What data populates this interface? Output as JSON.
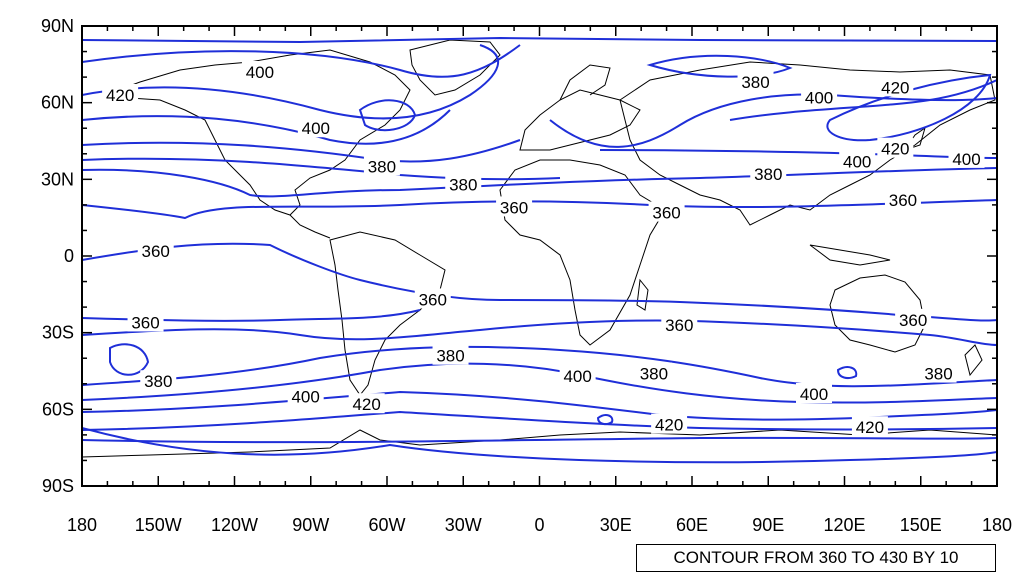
{
  "map": {
    "projection": "cylindrical-equidistant",
    "lon_range": [
      -180,
      180
    ],
    "lat_range": [
      -90,
      90
    ],
    "contour_color": "#1f2fd8",
    "coast_color": "#000000",
    "y_tick_labels": [
      "90N",
      "60N",
      "30N",
      "0",
      "30S",
      "60S",
      "90S"
    ],
    "x_tick_labels": [
      "180",
      "150W",
      "120W",
      "90W",
      "60W",
      "30W",
      "0",
      "30E",
      "60E",
      "90E",
      "120E",
      "150E",
      "180"
    ],
    "contour_labels": [
      {
        "text": "400",
        "lon": -110,
        "lat": 72
      },
      {
        "text": "420",
        "lon": -165,
        "lat": 63
      },
      {
        "text": "400",
        "lon": -88,
        "lat": 50
      },
      {
        "text": "380",
        "lon": -62,
        "lat": 35
      },
      {
        "text": "380",
        "lon": -30,
        "lat": 28
      },
      {
        "text": "360",
        "lon": -10,
        "lat": 19
      },
      {
        "text": "360",
        "lon": 50,
        "lat": 17
      },
      {
        "text": "380",
        "lon": 90,
        "lat": 32
      },
      {
        "text": "380",
        "lon": 85,
        "lat": 68
      },
      {
        "text": "400",
        "lon": 110,
        "lat": 62
      },
      {
        "text": "420",
        "lon": 140,
        "lat": 66
      },
      {
        "text": "420",
        "lon": 140,
        "lat": 42
      },
      {
        "text": "400",
        "lon": 125,
        "lat": 37
      },
      {
        "text": "400",
        "lon": 168,
        "lat": 38
      },
      {
        "text": "360",
        "lon": 143,
        "lat": 22
      },
      {
        "text": "360",
        "lon": -151,
        "lat": 2
      },
      {
        "text": "360",
        "lon": -42,
        "lat": -17
      },
      {
        "text": "360",
        "lon": -155,
        "lat": -26
      },
      {
        "text": "360",
        "lon": 55,
        "lat": -27
      },
      {
        "text": "360",
        "lon": 147,
        "lat": -25
      },
      {
        "text": "380",
        "lon": -150,
        "lat": -49
      },
      {
        "text": "380",
        "lon": -35,
        "lat": -39
      },
      {
        "text": "380",
        "lon": 45,
        "lat": -46
      },
      {
        "text": "380",
        "lon": 157,
        "lat": -46
      },
      {
        "text": "400",
        "lon": 15,
        "lat": -47
      },
      {
        "text": "400",
        "lon": -92,
        "lat": -55
      },
      {
        "text": "400",
        "lon": 108,
        "lat": -54
      },
      {
        "text": "420",
        "lon": -68,
        "lat": -58
      },
      {
        "text": "420",
        "lon": 51,
        "lat": -66
      },
      {
        "text": "420",
        "lon": 130,
        "lat": -67
      }
    ]
  },
  "footer": {
    "text": "CONTOUR FROM 360 TO 430 BY 10"
  }
}
